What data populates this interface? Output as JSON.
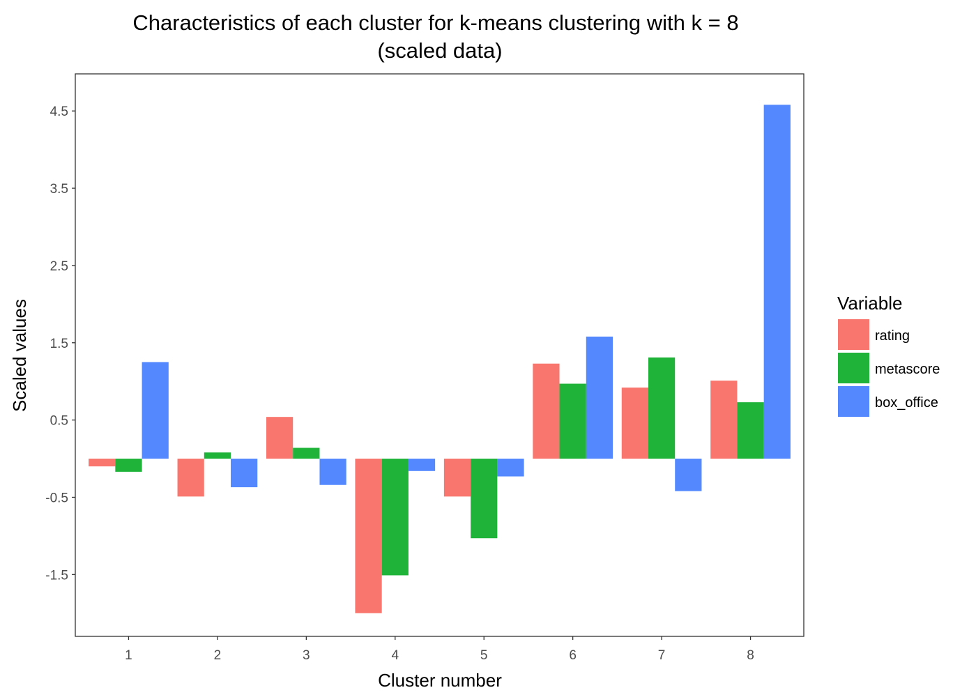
{
  "chart_data": {
    "type": "bar",
    "title_line1": "Characteristics of each cluster for k-means clustering with k = 8",
    "title_line2": "(scaled data)",
    "xlabel": "Cluster number",
    "ylabel": "Scaled values",
    "categories": [
      "1",
      "2",
      "3",
      "4",
      "5",
      "6",
      "7",
      "8"
    ],
    "y_ticks": [
      {
        "value": -1.5,
        "label": "-1.5"
      },
      {
        "value": -0.5,
        "label": "-0.5"
      },
      {
        "value": 0.5,
        "label": "0.5"
      },
      {
        "value": 1.5,
        "label": "1.5"
      },
      {
        "value": 2.5,
        "label": "2.5"
      },
      {
        "value": 3.5,
        "label": "3.5"
      },
      {
        "value": 4.5,
        "label": "4.5"
      }
    ],
    "ylim": [
      -2.3,
      4.98
    ],
    "grid": false,
    "legend": {
      "title": "Variable",
      "placement": "right"
    },
    "series": [
      {
        "name": "rating",
        "color": "#F8766D",
        "values": [
          -0.1,
          -0.49,
          0.54,
          -2.0,
          -0.49,
          1.23,
          0.92,
          1.01
        ]
      },
      {
        "name": "metascore",
        "color": "#1FB33A",
        "values": [
          -0.17,
          0.08,
          0.14,
          -1.51,
          -1.03,
          0.97,
          1.31,
          0.73
        ]
      },
      {
        "name": "box_office",
        "color": "#5388FF",
        "values": [
          1.25,
          -0.37,
          -0.34,
          -0.16,
          -0.23,
          1.58,
          -0.42,
          4.58
        ]
      }
    ]
  }
}
